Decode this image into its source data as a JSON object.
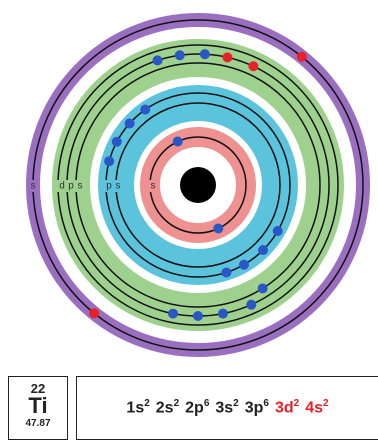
{
  "shell_labels": {
    "shell4": [
      "s"
    ],
    "shell3": [
      "d",
      "p",
      "s"
    ],
    "shell2": [
      "p",
      "s"
    ],
    "shell1": [
      "s"
    ]
  },
  "element": {
    "number": "22",
    "symbol": "Ti",
    "mass": "47.87"
  },
  "configuration": [
    {
      "orbital": "1s",
      "count": "2",
      "highlight": false
    },
    {
      "orbital": "2s",
      "count": "2",
      "highlight": false
    },
    {
      "orbital": "2p",
      "count": "6",
      "highlight": false
    },
    {
      "orbital": "3s",
      "count": "2",
      "highlight": false
    },
    {
      "orbital": "3p",
      "count": "6",
      "highlight": false
    },
    {
      "orbital": "3d",
      "count": "2",
      "highlight": true
    },
    {
      "orbital": "4s",
      "count": "2",
      "highlight": true
    }
  ]
}
